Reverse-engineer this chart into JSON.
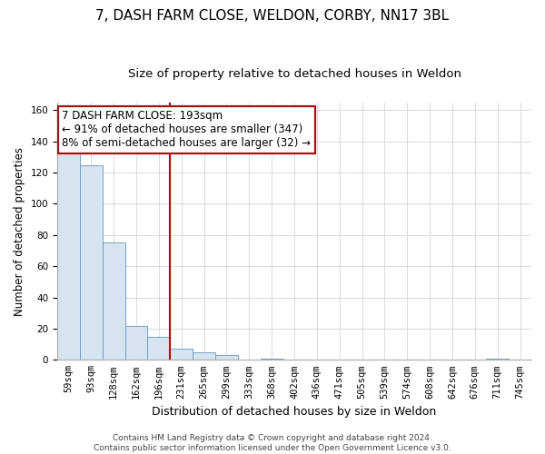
{
  "title": "7, DASH FARM CLOSE, WELDON, CORBY, NN17 3BL",
  "subtitle": "Size of property relative to detached houses in Weldon",
  "xlabel": "Distribution of detached houses by size in Weldon",
  "ylabel": "Number of detached properties",
  "bin_labels": [
    "59sqm",
    "93sqm",
    "128sqm",
    "162sqm",
    "196sqm",
    "231sqm",
    "265sqm",
    "299sqm",
    "333sqm",
    "368sqm",
    "402sqm",
    "436sqm",
    "471sqm",
    "505sqm",
    "539sqm",
    "574sqm",
    "608sqm",
    "642sqm",
    "676sqm",
    "711sqm",
    "745sqm"
  ],
  "bar_heights": [
    132,
    125,
    75,
    22,
    15,
    7,
    5,
    3,
    0,
    1,
    0,
    0,
    0,
    0,
    0,
    0,
    0,
    0,
    0,
    1,
    0
  ],
  "bar_color": "#d6e4f0",
  "bar_edge_color": "#5b9bd5",
  "vline_x_index": 4,
  "vline_color": "#cc0000",
  "ylim": [
    0,
    165
  ],
  "yticks": [
    0,
    20,
    40,
    60,
    80,
    100,
    120,
    140,
    160
  ],
  "annotation_text": "7 DASH FARM CLOSE: 193sqm\n← 91% of detached houses are smaller (347)\n8% of semi-detached houses are larger (32) →",
  "annotation_box_color": "#ffffff",
  "annotation_box_edge_color": "#cc0000",
  "footer_text": "Contains HM Land Registry data © Crown copyright and database right 2024.\nContains public sector information licensed under the Open Government Licence v3.0.",
  "background_color": "#ffffff",
  "plot_background_color": "#ffffff",
  "title_fontsize": 11,
  "subtitle_fontsize": 9.5,
  "xlabel_fontsize": 9,
  "ylabel_fontsize": 8.5,
  "tick_fontsize": 7.5,
  "annotation_fontsize": 8.5,
  "footer_fontsize": 6.5,
  "grid_color": "#d0d8e0"
}
